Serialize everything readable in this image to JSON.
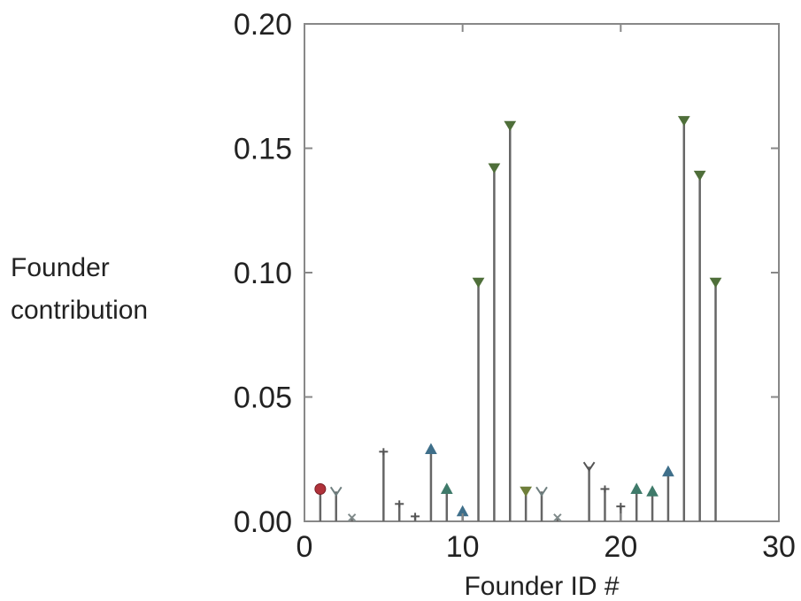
{
  "chart_data": {
    "type": "stem",
    "xlabel": "Founder ID #",
    "ylabel_lines": [
      "Founder",
      "contribution"
    ],
    "xlim": [
      0,
      30
    ],
    "ylim": [
      0,
      0.2
    ],
    "xticks": [
      0,
      10,
      20,
      30
    ],
    "xtick_labels": [
      "0",
      "10",
      "20",
      "30"
    ],
    "yticks": [
      0,
      0.05,
      0.1,
      0.15,
      0.2
    ],
    "ytick_labels": [
      "0.00",
      "0.05",
      "0.10",
      "0.15",
      "0.20"
    ],
    "grid": false,
    "points": [
      {
        "x": 1,
        "y": 0.013,
        "marker": "circle",
        "color": "#b0323a"
      },
      {
        "x": 2,
        "y": 0.012,
        "marker": "tri-down-open",
        "color": "#6f7f7f"
      },
      {
        "x": 3,
        "y": 0.0015,
        "marker": "x",
        "color": "#7f8a8a"
      },
      {
        "x": 5,
        "y": 0.028,
        "marker": "plus",
        "color": "#555555"
      },
      {
        "x": 6,
        "y": 0.007,
        "marker": "plus",
        "color": "#555555"
      },
      {
        "x": 7,
        "y": 0.002,
        "marker": "plus",
        "color": "#555555"
      },
      {
        "x": 8,
        "y": 0.029,
        "marker": "tri-up",
        "color": "#3f6f8a"
      },
      {
        "x": 9,
        "y": 0.013,
        "marker": "tri-up",
        "color": "#3f7a6a"
      },
      {
        "x": 10,
        "y": 0.004,
        "marker": "tri-up",
        "color": "#3f6f8a"
      },
      {
        "x": 11,
        "y": 0.096,
        "marker": "tri-down",
        "color": "#4f6f3a"
      },
      {
        "x": 12,
        "y": 0.142,
        "marker": "tri-down",
        "color": "#4f6f3a"
      },
      {
        "x": 13,
        "y": 0.159,
        "marker": "tri-down",
        "color": "#4f6f3a"
      },
      {
        "x": 14,
        "y": 0.012,
        "marker": "tri-down",
        "color": "#6f7f3a"
      },
      {
        "x": 15,
        "y": 0.012,
        "marker": "tri-down-open",
        "color": "#6f7f7f"
      },
      {
        "x": 16,
        "y": 0.0015,
        "marker": "x",
        "color": "#7f8a8a"
      },
      {
        "x": 18,
        "y": 0.022,
        "marker": "tri-down-open",
        "color": "#555555"
      },
      {
        "x": 19,
        "y": 0.013,
        "marker": "plus",
        "color": "#555555"
      },
      {
        "x": 20,
        "y": 0.006,
        "marker": "plus",
        "color": "#555555"
      },
      {
        "x": 21,
        "y": 0.013,
        "marker": "tri-up",
        "color": "#3f7a6a"
      },
      {
        "x": 22,
        "y": 0.012,
        "marker": "tri-up",
        "color": "#3f7a6a"
      },
      {
        "x": 23,
        "y": 0.02,
        "marker": "tri-up",
        "color": "#3f6f8a"
      },
      {
        "x": 24,
        "y": 0.161,
        "marker": "tri-down",
        "color": "#4f6f3a"
      },
      {
        "x": 25,
        "y": 0.139,
        "marker": "tri-down",
        "color": "#4f6f3a"
      },
      {
        "x": 26,
        "y": 0.096,
        "marker": "tri-down",
        "color": "#4f6f3a"
      }
    ]
  }
}
